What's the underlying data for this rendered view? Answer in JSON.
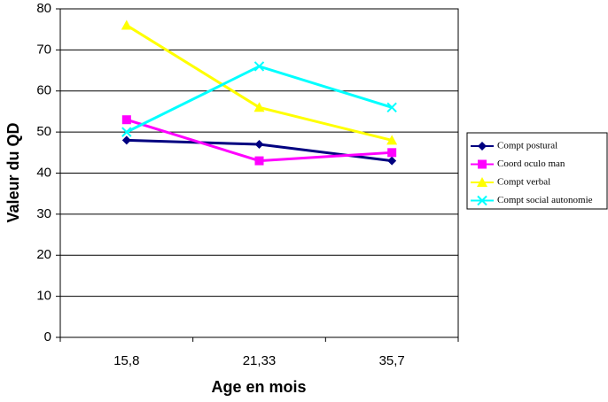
{
  "chart_data": {
    "type": "line",
    "x_label": "Age en mois",
    "y_label": "Valeur du QD",
    "categories": [
      "15,8",
      "21,33",
      "35,7"
    ],
    "series": [
      {
        "name": "Compt postural",
        "color": "#000080",
        "marker": "diamond",
        "values": [
          48,
          47,
          43
        ]
      },
      {
        "name": "Coord oculo man",
        "color": "#ff00ff",
        "marker": "square",
        "values": [
          53,
          43,
          45
        ]
      },
      {
        "name": "Compt verbal",
        "color": "#ffff00",
        "marker": "triangle",
        "values": [
          76,
          56,
          48
        ]
      },
      {
        "name": "Compt social autonomie",
        "color": "#00ffff",
        "marker": "x",
        "values": [
          50,
          66,
          56
        ]
      }
    ],
    "ylim": [
      0,
      80
    ],
    "yticks": [
      0,
      10,
      20,
      30,
      40,
      50,
      60,
      70,
      80
    ],
    "grid": true,
    "legend": "right"
  }
}
